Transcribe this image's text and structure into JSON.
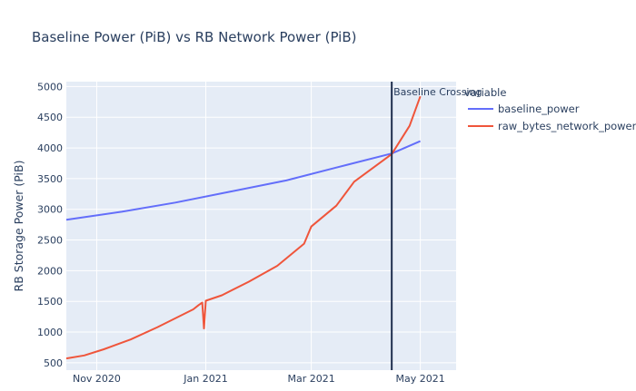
{
  "chart_data": {
    "type": "line",
    "title": "Baseline Power (PiB) vs RB Network Power (PiB)",
    "xlabel": "",
    "ylabel": "RB Storage Power (PiB)",
    "x_range": [
      "2020-10-15",
      "2021-05-21"
    ],
    "ylim": [
      380,
      5080
    ],
    "x_ticks": [
      {
        "date": "2020-11-01",
        "label": "Nov 2020"
      },
      {
        "date": "2021-01-01",
        "label": "Jan 2021"
      },
      {
        "date": "2021-03-01",
        "label": "Mar 2021"
      },
      {
        "date": "2021-05-01",
        "label": "May 2021"
      }
    ],
    "y_ticks": [
      500,
      1000,
      1500,
      2000,
      2500,
      3000,
      3500,
      4000,
      4500,
      5000
    ],
    "grid": true,
    "legend": {
      "title": "variable",
      "placement": "top-right"
    },
    "series": [
      {
        "name": "baseline_power",
        "color": "#636efa",
        "points": [
          [
            "2020-10-15",
            2830
          ],
          [
            "2020-11-15",
            2960
          ],
          [
            "2020-12-15",
            3110
          ],
          [
            "2021-01-15",
            3290
          ],
          [
            "2021-02-15",
            3470
          ],
          [
            "2021-03-15",
            3680
          ],
          [
            "2021-04-15",
            3910
          ],
          [
            "2021-05-01",
            4110
          ]
        ]
      },
      {
        "name": "raw_bytes_network_power",
        "color": "#ef553b",
        "points": [
          [
            "2020-10-15",
            570
          ],
          [
            "2020-10-25",
            620
          ],
          [
            "2020-11-05",
            720
          ],
          [
            "2020-11-20",
            880
          ],
          [
            "2020-12-05",
            1080
          ],
          [
            "2020-12-25",
            1370
          ],
          [
            "2020-12-28",
            1440
          ],
          [
            "2020-12-29",
            1460
          ],
          [
            "2020-12-30",
            1480
          ],
          [
            "2020-12-31",
            1060
          ],
          [
            "2021-01-01",
            1510
          ],
          [
            "2021-01-10",
            1600
          ],
          [
            "2021-01-25",
            1820
          ],
          [
            "2021-02-10",
            2080
          ],
          [
            "2021-02-25",
            2440
          ],
          [
            "2021-03-01",
            2720
          ],
          [
            "2021-03-15",
            3060
          ],
          [
            "2021-03-25",
            3450
          ],
          [
            "2021-04-15",
            3900
          ],
          [
            "2021-04-25",
            4360
          ],
          [
            "2021-05-01",
            4840
          ]
        ]
      }
    ],
    "annotations": [
      {
        "type": "vline",
        "x": "2021-04-15",
        "text": "Baseline Crossing",
        "color": "#1f2f4f"
      }
    ]
  }
}
